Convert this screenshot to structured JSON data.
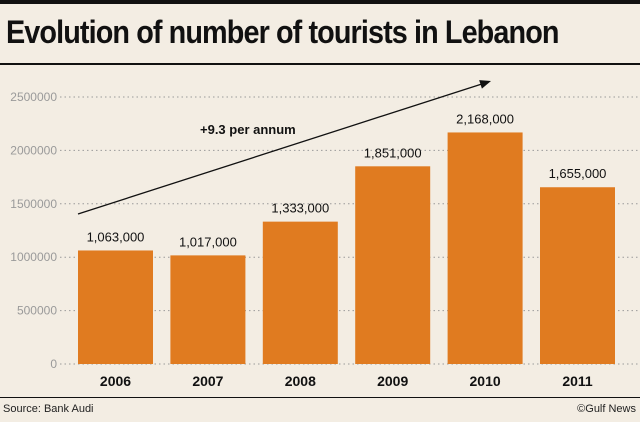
{
  "chart_data": {
    "type": "bar",
    "title": "Evolution of number of tourists in Lebanon",
    "categories": [
      "2006",
      "2007",
      "2008",
      "2009",
      "2010",
      "2011"
    ],
    "values": [
      1063000,
      1017000,
      1333000,
      1851000,
      2168000,
      1655000
    ],
    "data_labels": [
      "1,063,000",
      "1,017,000",
      "1,333,000",
      "1,851,000",
      "2,168,000",
      "1,655,000"
    ],
    "ylim": [
      0,
      2500000
    ],
    "yticks": [
      0,
      500000,
      1000000,
      1500000,
      2000000,
      2500000
    ],
    "ytick_labels": [
      "0",
      "500000",
      "1000000",
      "1500000",
      "2000000",
      "2500000"
    ],
    "grid": true,
    "annotation": "+9.3 per annum",
    "bar_color": "#e07b20"
  },
  "footer": {
    "source": "Source: Bank Audi",
    "credit": "©Gulf News"
  }
}
